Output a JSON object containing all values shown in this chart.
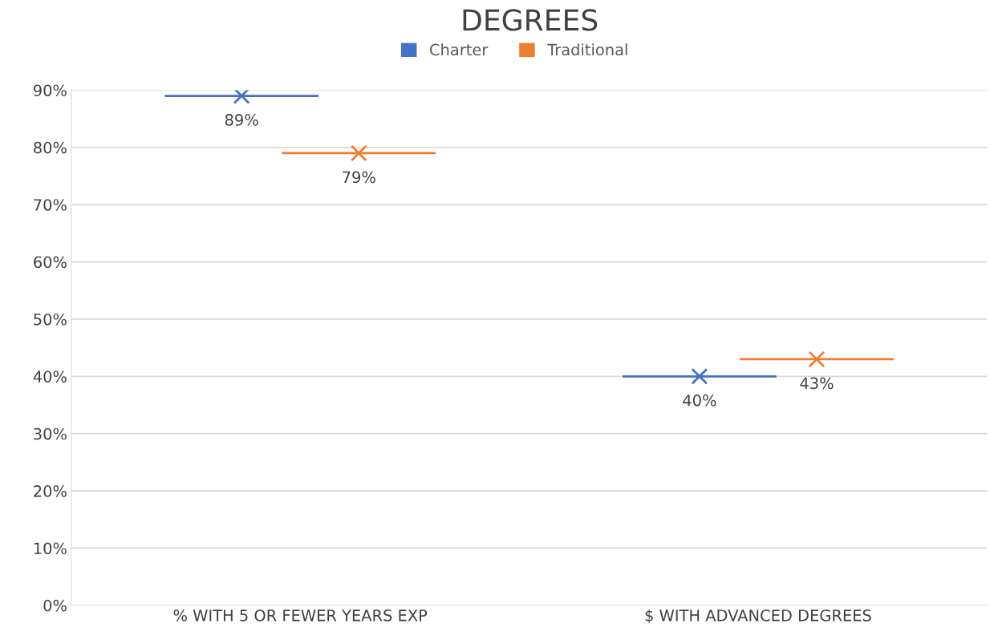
{
  "chart_data": {
    "type": "scatter",
    "title": "DEGREES",
    "categories": [
      "% WITH 5 OR FEWER YEARS EXP",
      "$ WITH ADVANCED DEGREES"
    ],
    "series": [
      {
        "name": "Charter",
        "color": "#4472c4",
        "values": [
          89,
          40
        ],
        "value_labels": [
          "89%",
          "40%"
        ]
      },
      {
        "name": "Traditional",
        "color": "#ed7d31",
        "values": [
          79,
          43
        ],
        "value_labels": [
          "79%",
          "43%"
        ]
      }
    ],
    "ylim": [
      0,
      90
    ],
    "yticks": [
      {
        "value": 0,
        "label": "0%"
      },
      {
        "value": 10,
        "label": "10%"
      },
      {
        "value": 20,
        "label": "20%"
      },
      {
        "value": 30,
        "label": "30%"
      },
      {
        "value": 40,
        "label": "40%"
      },
      {
        "value": 50,
        "label": "50%"
      },
      {
        "value": 60,
        "label": "60%"
      },
      {
        "value": 70,
        "label": "70%"
      },
      {
        "value": 80,
        "label": "80%"
      },
      {
        "value": 90,
        "label": "90%"
      }
    ],
    "grid": "y",
    "legend": "top",
    "marker": "cross"
  }
}
